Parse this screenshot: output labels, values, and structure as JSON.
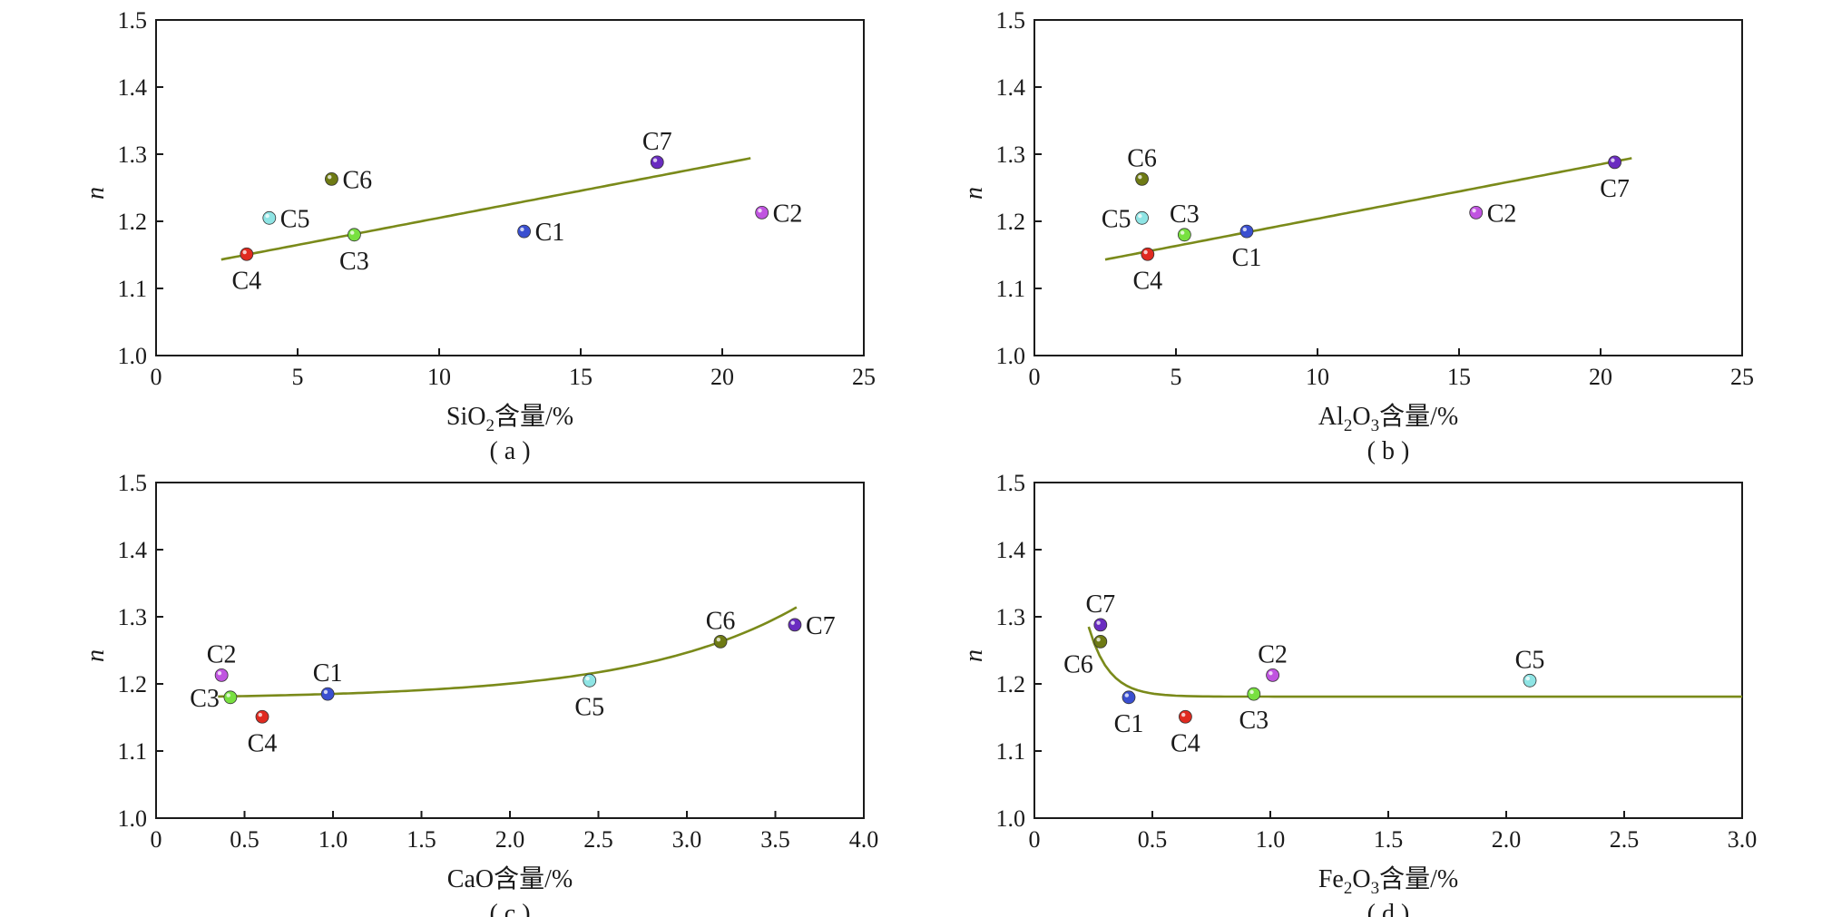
{
  "colors": {
    "axis": "#1a1a1a",
    "fit_line": "#7a8a1a",
    "C1": "#3a4fd0",
    "C2": "#c054e0",
    "C3": "#78e040",
    "C4": "#e02a20",
    "C5": "#8ee4e4",
    "C6": "#6e7a14",
    "C7": "#6a2cc0"
  },
  "chart_data": [
    {
      "type": "scatter",
      "panel_label": "( a )",
      "xlabel_main": "SiO",
      "xlabel_sub": "2",
      "xlabel_tail": "含量/%",
      "ylabel": "n",
      "xlim": [
        0,
        25
      ],
      "ylim": [
        1.0,
        1.5
      ],
      "xticks": [
        "0",
        "5",
        "10",
        "15",
        "20",
        "25"
      ],
      "yticks": [
        "1.0",
        "1.1",
        "1.2",
        "1.3",
        "1.4",
        "1.5"
      ],
      "fit": {
        "kind": "linear",
        "x_range": [
          2.3,
          21.0
        ],
        "y_at_range": [
          1.143,
          1.294
        ]
      },
      "points": [
        {
          "name": "C1",
          "x": 13.0,
          "y": 1.185,
          "label_pos": "right"
        },
        {
          "name": "C2",
          "x": 21.4,
          "y": 1.213,
          "label_pos": "right"
        },
        {
          "name": "C3",
          "x": 7.0,
          "y": 1.18,
          "label_pos": "below"
        },
        {
          "name": "C4",
          "x": 3.2,
          "y": 1.151,
          "label_pos": "below"
        },
        {
          "name": "C5",
          "x": 4.0,
          "y": 1.205,
          "label_pos": "right"
        },
        {
          "name": "C6",
          "x": 6.2,
          "y": 1.263,
          "label_pos": "right"
        },
        {
          "name": "C7",
          "x": 17.7,
          "y": 1.288,
          "label_pos": "above"
        }
      ]
    },
    {
      "type": "scatter",
      "panel_label": "( b )",
      "xlabel_main": "Al",
      "xlabel_sub": "2",
      "xlabel_mid": "O",
      "xlabel_sub2": "3",
      "xlabel_tail": "含量/%",
      "ylabel": "n",
      "xlim": [
        0,
        25
      ],
      "ylim": [
        1.0,
        1.5
      ],
      "xticks": [
        "0",
        "5",
        "10",
        "15",
        "20",
        "25"
      ],
      "yticks": [
        "1.0",
        "1.1",
        "1.2",
        "1.3",
        "1.4",
        "1.5"
      ],
      "fit": {
        "kind": "linear",
        "x_range": [
          2.5,
          21.1
        ],
        "y_at_range": [
          1.143,
          1.294
        ]
      },
      "points": [
        {
          "name": "C1",
          "x": 7.5,
          "y": 1.185,
          "label_pos": "below"
        },
        {
          "name": "C2",
          "x": 15.6,
          "y": 1.213,
          "label_pos": "right"
        },
        {
          "name": "C3",
          "x": 5.3,
          "y": 1.18,
          "label_pos": "above"
        },
        {
          "name": "C4",
          "x": 4.0,
          "y": 1.151,
          "label_pos": "below"
        },
        {
          "name": "C5",
          "x": 3.8,
          "y": 1.205,
          "label_pos": "left"
        },
        {
          "name": "C6",
          "x": 3.8,
          "y": 1.263,
          "label_pos": "above"
        },
        {
          "name": "C7",
          "x": 20.5,
          "y": 1.288,
          "label_pos": "below"
        }
      ]
    },
    {
      "type": "scatter",
      "panel_label": "( c )",
      "xlabel_main": "CaO",
      "xlabel_tail": "含量/%",
      "ylabel": "n",
      "xlim": [
        0,
        4.0
      ],
      "ylim": [
        1.0,
        1.5
      ],
      "xticks": [
        "0",
        "0.5",
        "1.0",
        "1.5",
        "2.0",
        "2.5",
        "3.0",
        "3.5",
        "4.0"
      ],
      "yticks": [
        "1.0",
        "1.1",
        "1.2",
        "1.3",
        "1.4",
        "1.5"
      ],
      "fit": {
        "kind": "exponential_growth",
        "x_range": [
          0.35,
          3.62
        ],
        "y0": 1.18,
        "a": 0.00255,
        "b": 1.1
      },
      "points": [
        {
          "name": "C1",
          "x": 0.97,
          "y": 1.185,
          "label_pos": "above"
        },
        {
          "name": "C2",
          "x": 0.37,
          "y": 1.213,
          "label_pos": "above"
        },
        {
          "name": "C3",
          "x": 0.42,
          "y": 1.18,
          "label_pos": "left"
        },
        {
          "name": "C4",
          "x": 0.6,
          "y": 1.151,
          "label_pos": "below"
        },
        {
          "name": "C5",
          "x": 2.45,
          "y": 1.205,
          "label_pos": "below"
        },
        {
          "name": "C6",
          "x": 3.19,
          "y": 1.263,
          "label_pos": "above"
        },
        {
          "name": "C7",
          "x": 3.61,
          "y": 1.288,
          "label_pos": "right"
        }
      ]
    },
    {
      "type": "scatter",
      "panel_label": "( d )",
      "xlabel_main": "Fe",
      "xlabel_sub": "2",
      "xlabel_mid": "O",
      "xlabel_sub2": "3",
      "xlabel_tail": "含量/%",
      "ylabel": "n",
      "xlim": [
        0,
        3.0
      ],
      "ylim": [
        1.0,
        1.5
      ],
      "xticks": [
        "0",
        "0.5",
        "1.0",
        "1.5",
        "2.0",
        "2.5",
        "3.0"
      ],
      "yticks": [
        "1.0",
        "1.1",
        "1.2",
        "1.3",
        "1.4",
        "1.5"
      ],
      "fit": {
        "kind": "exponential_decay",
        "x_range": [
          0.23,
          3.0
        ],
        "y0": 1.181,
        "a": 0.104,
        "x0": 0.23,
        "k": 11.5
      },
      "points": [
        {
          "name": "C1",
          "x": 0.4,
          "y": 1.18,
          "label_pos": "below"
        },
        {
          "name": "C2",
          "x": 1.01,
          "y": 1.213,
          "label_pos": "above"
        },
        {
          "name": "C3",
          "x": 0.93,
          "y": 1.185,
          "label_pos": "below"
        },
        {
          "name": "C4",
          "x": 0.64,
          "y": 1.151,
          "label_pos": "below"
        },
        {
          "name": "C5",
          "x": 2.1,
          "y": 1.205,
          "label_pos": "above"
        },
        {
          "name": "C6",
          "x": 0.28,
          "y": 1.263,
          "label_pos": "left_below"
        },
        {
          "name": "C7",
          "x": 0.28,
          "y": 1.288,
          "label_pos": "above"
        }
      ]
    }
  ]
}
